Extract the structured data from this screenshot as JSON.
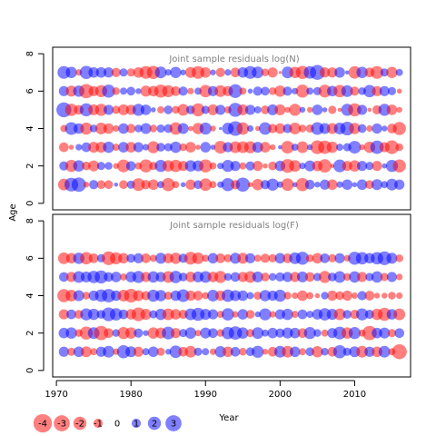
{
  "chart_data": {
    "type": "bubble-residuals",
    "x_axis": {
      "label": "Year",
      "range": [
        1969.5,
        2017.5
      ],
      "ticks": [
        1970,
        1980,
        1990,
        2000,
        2010
      ],
      "tick_labels": [
        "1970",
        "1980",
        "1990",
        "2000",
        "2010"
      ]
    },
    "y_axis": {
      "label": "Age",
      "range": [
        0,
        8
      ],
      "ticks": [
        0,
        2,
        4,
        6,
        8
      ],
      "tick_labels": [
        "0",
        "2",
        "4",
        "6",
        "8"
      ]
    },
    "bubble_colors": {
      "negative": "#FF0000",
      "positive": "#0000FF",
      "opacity": 0.5
    },
    "legend": {
      "placement": "bottom-left",
      "values": [
        -4,
        -3,
        -2,
        -1,
        0,
        1,
        2,
        3
      ],
      "labels": [
        "-4",
        "-3",
        "-2",
        "-1",
        "0",
        "1",
        "2",
        "3"
      ]
    },
    "years": {
      "start": 1971,
      "end": 2016
    },
    "panels": [
      {
        "title": "Joint sample residuals log(N)",
        "ages": [
          1,
          2,
          3,
          4,
          5,
          6,
          7
        ],
        "residuals": [
          [
            -1.6,
            2.2,
            2.4,
            -0.4,
            1.0,
            -0.9,
            -0.9,
            0.2,
            -0.9,
            0.8,
            -1.9,
            -1.0,
            -1.3,
            0.6,
            -2.0,
            -0.6,
            0.3,
            -1.2,
            0.9,
            -1.8,
            -0.6,
            0.5,
            2.0,
            -1.0,
            2.3,
            -0.3,
            -1.5,
            1.0,
            1.7,
            0.5,
            -1.8,
            0.3,
            -2.0,
            1.1,
            0.4,
            1.2,
            -1.3,
            0.5,
            1.3,
            0.3,
            1.3,
            -0.9,
            1.4,
            0.6,
            1.6,
            1.2
          ],
          [
            1.0,
            -1.7,
            1.5,
            -0.9,
            -1.4,
            0.8,
            0.7,
            -0.4,
            -1.9,
            1.1,
            -0.6,
            -2.0,
            -0.8,
            1.7,
            -1.5,
            -1.8,
            -1.2,
            1.5,
            1.4,
            -2.0,
            -0.6,
            0.5,
            1.7,
            1.2,
            -0.6,
            1.0,
            -1.2,
            -0.3,
            -0.9,
            1.3,
            -2.2,
            -1.6,
            0.5,
            1.4,
            -1.3,
            -2.1,
            -0.2,
            1.9,
            -1.2,
            -1.5,
            1.2,
            0.8,
            -1.2,
            0.3,
            1.7,
            -2.0
          ],
          [
            -1.1,
            -0.3,
            0.5,
            1.1,
            -1.4,
            -1.4,
            1.5,
            -0.6,
            1.3,
            -1.3,
            1.2,
            0.5,
            -1.7,
            0.9,
            0.8,
            1.5,
            -0.7,
            -1.3,
            -0.3,
            1.3,
            0.3,
            -1.9,
            1.2,
            -1.6,
            -1.6,
            -1.7,
            1.4,
            -1.3,
            -0.4,
            0.2,
            -1.9,
            0.6,
            -1.6,
            0.4,
            -2.2,
            -2.1,
            -1.5,
            0.6,
            0.8,
            1.9,
            -0.4,
            -1.5,
            2.1,
            -1.2,
            -2.2,
            -0.7
          ],
          [
            -0.6,
            1.9,
            1.3,
            -1.7,
            0.7,
            -1.6,
            -1.3,
            -0.5,
            1.3,
            -1.0,
            0.7,
            1.4,
            -0.7,
            0.8,
            0.9,
            -1.8,
            1.4,
            -0.3,
            -1.5,
            1.7,
            -0.4,
            0.1,
            1.6,
            2.5,
            -1.8,
            0.5,
            -0.3,
            1.8,
            -1.0,
            -1.3,
            1.0,
            -1.6,
            -0.7,
            -0.8,
            1.9,
            1.4,
            -1.4,
            1.6,
            2.2,
            -1.5,
            0.9,
            -0.5,
            1.2,
            0.4,
            -1.1,
            -2.0
          ],
          [
            2.6,
            -1.8,
            -1.1,
            2.0,
            -1.4,
            -1.7,
            1.2,
            -0.8,
            -1.4,
            -1.2,
            1.7,
            1.3,
            0.3,
            -0.6,
            0.9,
            -0.7,
            -1.6,
            0.9,
            -2.0,
            0.8,
            -1.4,
            1.2,
            -0.6,
            2.3,
            -1.4,
            1.2,
            0.6,
            -0.9,
            1.4,
            -1.4,
            -0.4,
            -1.7,
            0.4,
            -0.4,
            1.3,
            0.3,
            -0.8,
            -0.2,
            1.7,
            -2.0,
            1.2,
            -0.2,
            -1.0,
            1.7,
            -1.3,
            -0.4
          ],
          [
            1.2,
            -1.4,
            1.5,
            -2.4,
            -1.2,
            -1.7,
            2.0,
            -0.7,
            0.6,
            0.9,
            0.4,
            -1.4,
            -1.3,
            -2.0,
            -1.7,
            -1.1,
            1.0,
            -0.5,
            0.6,
            -1.8,
            1.2,
            -1.6,
            -1.2,
            2.2,
            -0.6,
            0.3,
            1.0,
            0.9,
            -0.7,
            -1.5,
            1.0,
            0.5,
            -2.0,
            0.6,
            0.8,
            -1.9,
            1.3,
            -1.8,
            1.6,
            -1.0,
            0.7,
            1.8,
            -1.2,
            1.2,
            0.8,
            -0.3
          ],
          [
            1.9,
            1.5,
            -0.5,
            2.0,
            1.3,
            1.3,
            1.2,
            -1.0,
            0.8,
            -0.8,
            -1.3,
            -1.9,
            -2.0,
            1.6,
            0.5,
            1.5,
            0.4,
            -1.4,
            -1.9,
            -1.3,
            0.4,
            -1.0,
            0.5,
            -1.1,
            1.3,
            1.9,
            1.6,
            -0.7,
            -1.2,
            -0.1,
            1.6,
            -1.5,
            -2.0,
            1.8,
            2.6,
            -1.2,
            -1.2,
            1.3,
            0.2,
            -1.8,
            1.5,
            -1.1,
            -1.9,
            0.8,
            -1.5,
            0.6
          ]
        ]
      },
      {
        "title": "Joint sample residuals log(F)",
        "ages": [
          1,
          2,
          3,
          4,
          5,
          6
        ],
        "residuals": [
          [
            1.2,
            -0.8,
            1.3,
            -1.4,
            -0.6,
            1.2,
            1.6,
            -0.5,
            2.0,
            1.4,
            -1.2,
            0.6,
            1.3,
            -0.8,
            0.4,
            1.8,
            -1.1,
            -1.6,
            0.8,
            0.6,
            -0.5,
            1.5,
            -1.3,
            1.1,
            -0.7,
            0.9,
            1.7,
            -0.4,
            -1.1,
            1.6,
            -1.6,
            1.3,
            -0.6,
            0.9,
            -1.5,
            0.7,
            -1.1,
            2.0,
            0.8,
            1.4,
            -1.6,
            1.2,
            -1.3,
            1.6,
            -0.6,
            -2.6
          ],
          [
            1.3,
            1.5,
            -0.7,
            -2.0,
            1.6,
            -2.4,
            -1.1,
            0.7,
            -1.7,
            -1.5,
            1.0,
            0.4,
            -1.5,
            -1.4,
            1.9,
            -1.2,
            0.8,
            1.5,
            -0.5,
            1.4,
            1.1,
            -0.7,
            1.8,
            2.1,
            1.5,
            -0.8,
            1.6,
            0.6,
            1.3,
            1.0,
            1.4,
            1.3,
            -1.1,
            1.7,
            0.7,
            -0.6,
            1.2,
            1.9,
            -1.5,
            1.7,
            -0.6,
            -2.4,
            1.3,
            1.4,
            -0.8,
            1.1
          ],
          [
            -1.2,
            1.1,
            -0.9,
            1.7,
            1.5,
            0.9,
            2.2,
            1.8,
            1.1,
            -1.3,
            -2.2,
            -1.4,
            0.8,
            1.5,
            -1.6,
            -1.3,
            -1.0,
            1.6,
            2.0,
            1.4,
            1.2,
            -0.6,
            1.8,
            -0.5,
            1.3,
            -0.9,
            0.4,
            1.7,
            -0.5,
            1.2,
            1.5,
            -0.6,
            1.1,
            0.6,
            1.3,
            1.8,
            1.4,
            -1.6,
            0.9,
            -1.0,
            1.7,
            1.0,
            -1.5,
            -2.0,
            1.3,
            -1.6
          ],
          [
            -2.0,
            -1.6,
            1.4,
            -0.7,
            1.2,
            1.8,
            2.1,
            1.3,
            -1.6,
            -2.2,
            -1.4,
            -1.0,
            1.7,
            1.5,
            -0.8,
            1.3,
            1.9,
            -1.2,
            -1.1,
            -0.6,
            1.6,
            -1.2,
            1.8,
            1.4,
            1.3,
            0.6,
            -0.8,
            1.5,
            1.2,
            1.7,
            -0.7,
            -0.5,
            -1.3,
            -0.6,
            -0.3,
            0.7,
            -1.2,
            -0.9,
            -1.2,
            -0.5,
            1.0,
            -1.1,
            -0.4,
            -0.4,
            -0.7,
            -0.5
          ],
          [
            1.1,
            -1.2,
            1.6,
            1.4,
            1.8,
            2.0,
            1.1,
            1.3,
            -0.6,
            1.4,
            1.7,
            -1.2,
            1.5,
            1.2,
            -1.6,
            1.8,
            0.9,
            -1.3,
            1.4,
            1.6,
            -1.3,
            -1.7,
            0.7,
            1.1,
            -1.2,
            -1.6,
            1.4,
            -0.9,
            0.7,
            1.0,
            1.2,
            -1.2,
            1.4,
            -1.1,
            0.8,
            -1.7,
            0.9,
            1.6,
            -0.7,
            1.5,
            -1.2,
            0.8,
            1.5,
            -0.8,
            1.2,
            -0.5
          ],
          [
            -1.6,
            -1.3,
            1.5,
            -1.8,
            -1.1,
            0.8,
            -2.2,
            -1.7,
            -1.3,
            0.9,
            1.2,
            -1.1,
            -0.6,
            1.4,
            -1.2,
            -1.5,
            1.0,
            -1.9,
            -1.6,
            -0.6,
            1.3,
            -1.1,
            -0.8,
            1.4,
            -1.4,
            1.2,
            -0.6,
            -1.0,
            -0.8,
            1.3,
            -1.1,
            1.6,
            2.0,
            -0.7,
            -1.3,
            1.1,
            -0.8,
            1.2,
            -0.5,
            2.0,
            1.8,
            1.3,
            1.8,
            2.2,
            1.4,
            -0.7
          ]
        ]
      }
    ]
  }
}
